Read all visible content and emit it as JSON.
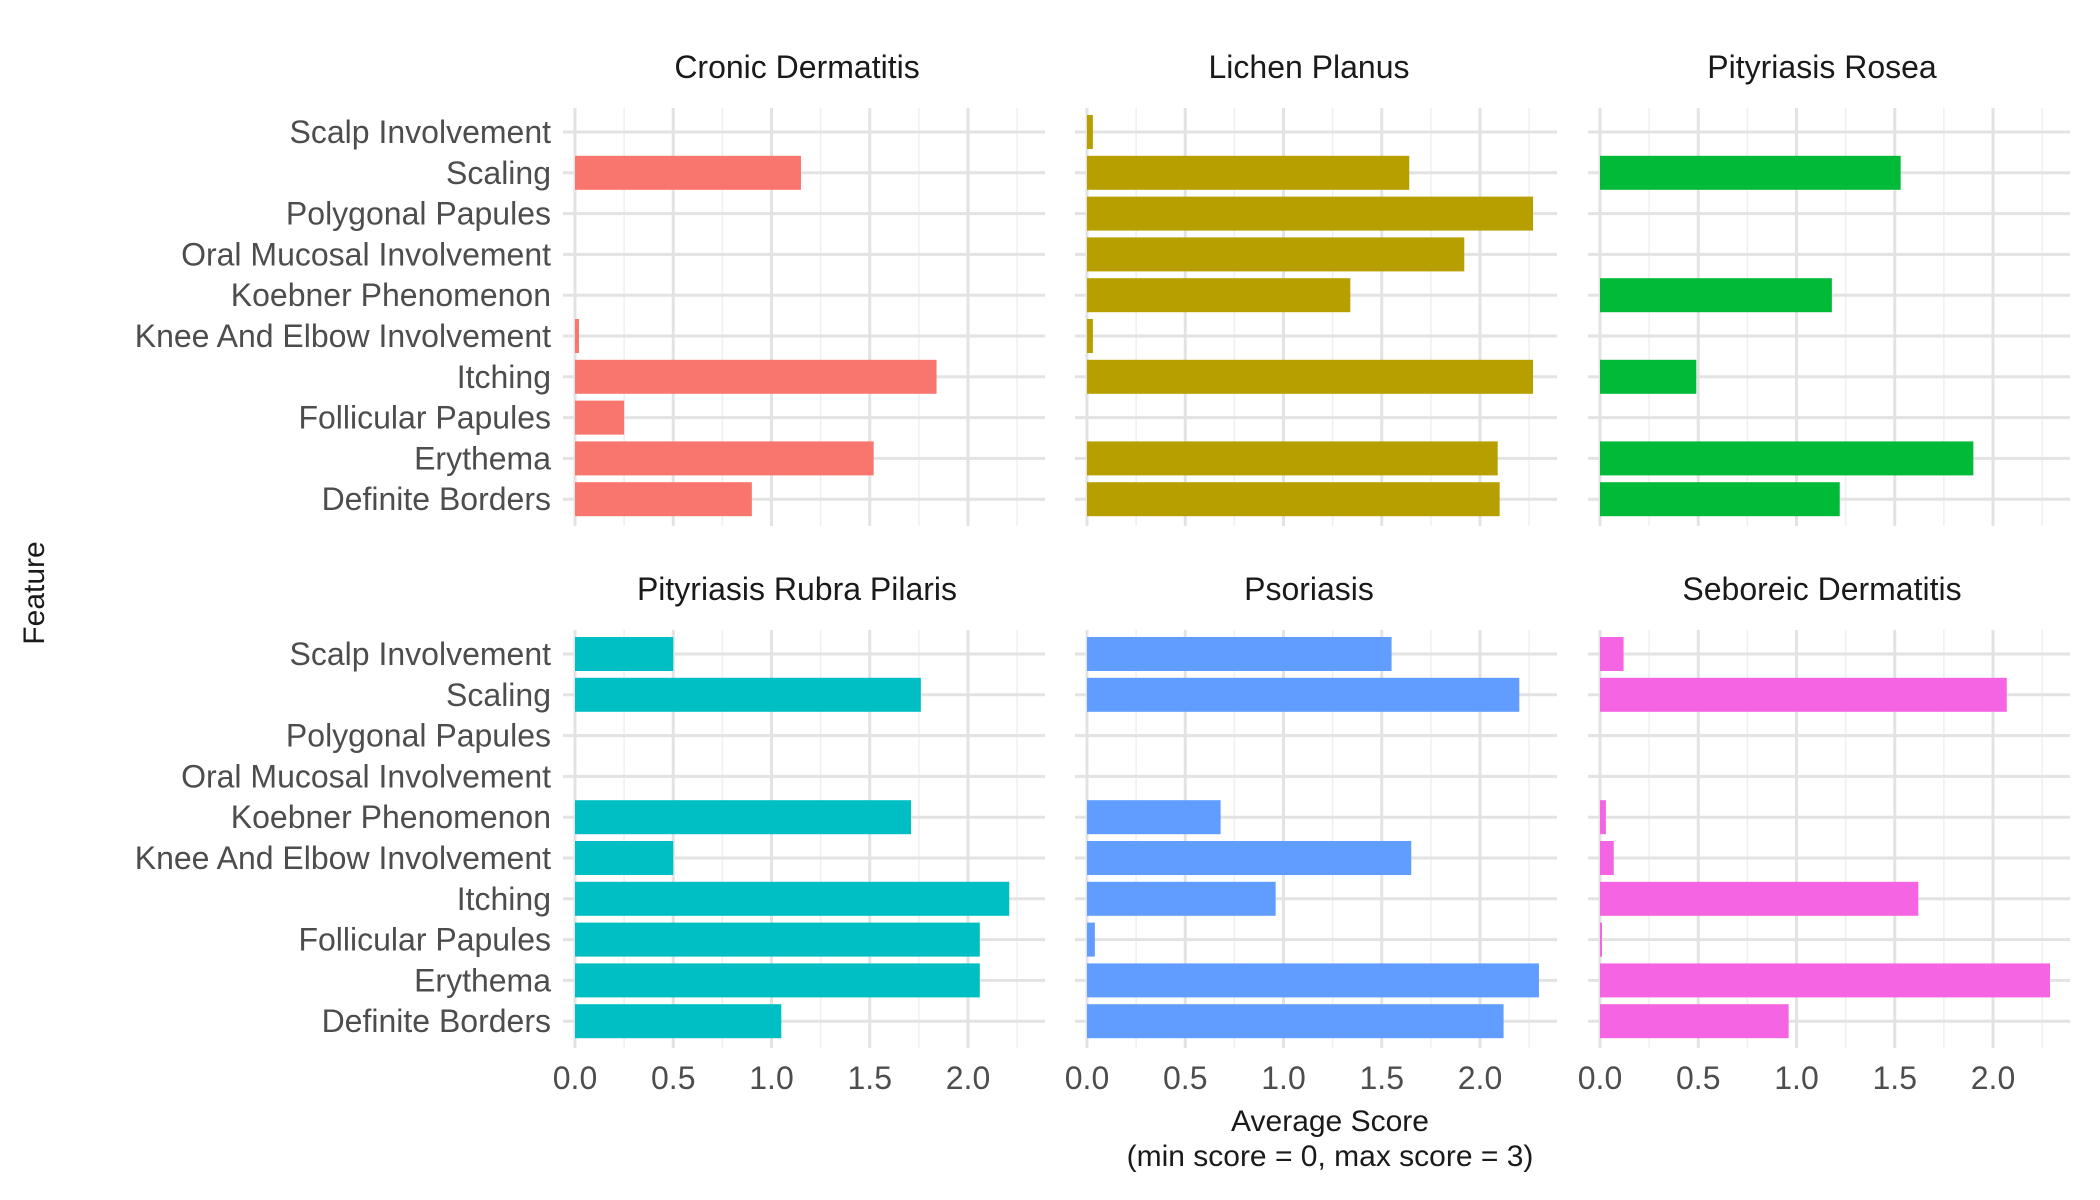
{
  "chart_data": {
    "type": "bar",
    "orientation": "horizontal",
    "facet_layout": "2x3",
    "xlabel": "Average Score",
    "xlabel_line2": "(min score = 0, max score = 3)",
    "ylabel": "Feature",
    "xlim": [
      0,
      2.35
    ],
    "xticks": [
      "0.0",
      "0.5",
      "1.0",
      "1.5",
      "2.0"
    ],
    "grid": true,
    "legend": "none",
    "features": [
      "Scalp Involvement",
      "Scaling",
      "Polygonal Papules",
      "Oral Mucosal Involvement",
      "Koebner Phenomenon",
      "Knee And Elbow Involvement",
      "Itching",
      "Follicular Papules",
      "Erythema",
      "Definite Borders"
    ],
    "panels": [
      {
        "title": "Cronic Dermatitis",
        "color": "#F8766D",
        "values": [
          0,
          1.15,
          0,
          0,
          0,
          0.02,
          1.84,
          0.25,
          1.52,
          0.9
        ]
      },
      {
        "title": "Lichen Planus",
        "color": "#B79F00",
        "values": [
          0.03,
          1.64,
          2.27,
          1.92,
          1.34,
          0.03,
          2.27,
          0,
          2.09,
          2.1
        ]
      },
      {
        "title": "Pityriasis Rosea",
        "color": "#00BA38",
        "values": [
          0,
          1.53,
          0,
          0,
          1.18,
          0,
          0.49,
          0,
          1.9,
          1.22
        ]
      },
      {
        "title": "Pityriasis Rubra Pilaris",
        "color": "#00BFC4",
        "values": [
          0.5,
          1.76,
          0,
          0,
          1.71,
          0.5,
          2.21,
          2.06,
          2.06,
          1.05
        ]
      },
      {
        "title": "Psoriasis",
        "color": "#619CFF",
        "values": [
          1.55,
          2.2,
          0,
          0,
          0.68,
          1.65,
          0.96,
          0.04,
          2.3,
          2.12
        ]
      },
      {
        "title": "Seboreic Dermatitis",
        "color": "#F564E3",
        "values": [
          0.12,
          2.07,
          0,
          0,
          0.03,
          0.07,
          1.62,
          0.01,
          2.29,
          0.96
        ]
      }
    ]
  }
}
